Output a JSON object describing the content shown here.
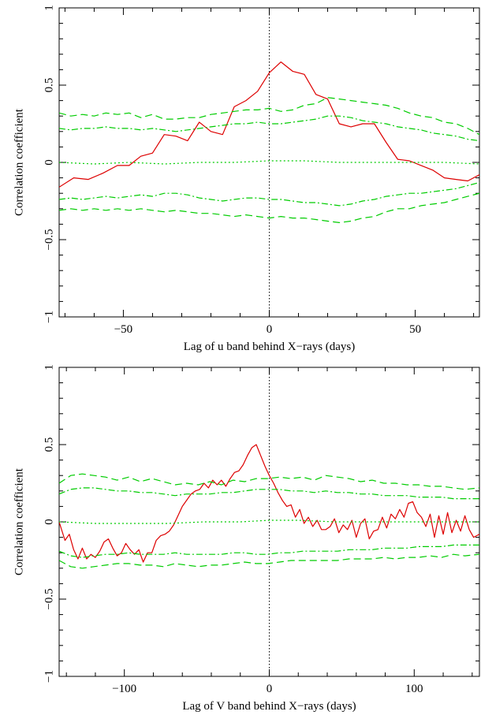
{
  "chart_data": [
    {
      "type": "line",
      "xlabel": "Lag of u band behind X−rays (days)",
      "ylabel": "Correlation coefficient",
      "xlim": [
        -72,
        72
      ],
      "ylim": [
        -1,
        1
      ],
      "xticks": [
        -50,
        0,
        50
      ],
      "xtick_labels": [
        "−50",
        "0",
        "50"
      ],
      "yticks": [
        -1,
        -0.5,
        0,
        0.5,
        1
      ],
      "ytick_labels": [
        "−1",
        "−0.5",
        "0",
        "0.5",
        "1"
      ],
      "grid": false,
      "zero_lag_line": true,
      "series": [
        {
          "style": "solid",
          "color": "#dd0000",
          "x": [
            -72,
            -67,
            -62,
            -57,
            -52,
            -48,
            -44,
            -40,
            -36,
            -32,
            -28,
            -24,
            -20,
            -16,
            -12,
            -8,
            -4,
            0,
            4,
            8,
            12,
            16,
            20,
            24,
            28,
            32,
            36,
            40,
            44,
            48,
            52,
            56,
            60,
            64,
            68,
            72
          ],
          "y": [
            -0.16,
            -0.1,
            -0.11,
            -0.07,
            -0.02,
            -0.02,
            0.04,
            0.06,
            0.18,
            0.17,
            0.14,
            0.26,
            0.2,
            0.18,
            0.36,
            0.4,
            0.46,
            0.58,
            0.65,
            0.59,
            0.57,
            0.44,
            0.41,
            0.25,
            0.23,
            0.25,
            0.25,
            0.13,
            0.02,
            0.01,
            -0.02,
            -0.05,
            -0.1,
            -0.11,
            -0.12,
            -0.08
          ]
        },
        {
          "style": "dashed",
          "color": "#00cc00",
          "x": [
            -72,
            -68,
            -64,
            -60,
            -56,
            -52,
            -48,
            -44,
            -40,
            -36,
            -32,
            -28,
            -24,
            -20,
            -16,
            -12,
            -8,
            -4,
            0,
            4,
            8,
            12,
            16,
            20,
            24,
            28,
            32,
            36,
            40,
            44,
            48,
            52,
            56,
            60,
            64,
            68,
            72
          ],
          "y": [
            0.32,
            0.3,
            0.31,
            0.3,
            0.32,
            0.31,
            0.32,
            0.29,
            0.31,
            0.28,
            0.28,
            0.29,
            0.29,
            0.31,
            0.32,
            0.33,
            0.34,
            0.34,
            0.35,
            0.33,
            0.34,
            0.37,
            0.38,
            0.42,
            0.41,
            0.4,
            0.39,
            0.38,
            0.37,
            0.35,
            0.32,
            0.3,
            0.29,
            0.26,
            0.25,
            0.22,
            0.18
          ]
        },
        {
          "style": "dashdot",
          "color": "#00cc00",
          "x": [
            -72,
            -68,
            -64,
            -60,
            -56,
            -52,
            -48,
            -44,
            -40,
            -36,
            -32,
            -28,
            -24,
            -20,
            -16,
            -12,
            -8,
            -4,
            0,
            4,
            8,
            12,
            16,
            20,
            24,
            28,
            32,
            36,
            40,
            44,
            48,
            52,
            56,
            60,
            64,
            68,
            72
          ],
          "y": [
            0.22,
            0.21,
            0.22,
            0.22,
            0.23,
            0.22,
            0.22,
            0.21,
            0.22,
            0.21,
            0.2,
            0.21,
            0.22,
            0.23,
            0.24,
            0.25,
            0.25,
            0.26,
            0.25,
            0.25,
            0.26,
            0.27,
            0.28,
            0.3,
            0.3,
            0.29,
            0.27,
            0.26,
            0.25,
            0.23,
            0.22,
            0.21,
            0.19,
            0.18,
            0.17,
            0.15,
            0.14
          ]
        },
        {
          "style": "dotted",
          "color": "#00cc00",
          "x": [
            -72,
            -60,
            -48,
            -36,
            -24,
            -12,
            0,
            12,
            24,
            36,
            48,
            60,
            72
          ],
          "y": [
            0.0,
            -0.01,
            0.0,
            -0.01,
            0.0,
            0.0,
            0.01,
            0.01,
            0.0,
            0.0,
            0.0,
            0.0,
            -0.01
          ]
        },
        {
          "style": "dashdot",
          "color": "#00cc00",
          "x": [
            -72,
            -68,
            -64,
            -60,
            -56,
            -52,
            -48,
            -44,
            -40,
            -36,
            -32,
            -28,
            -24,
            -20,
            -16,
            -12,
            -8,
            -4,
            0,
            4,
            8,
            12,
            16,
            20,
            24,
            28,
            32,
            36,
            40,
            44,
            48,
            52,
            56,
            60,
            64,
            68,
            72
          ],
          "y": [
            -0.24,
            -0.23,
            -0.24,
            -0.23,
            -0.22,
            -0.23,
            -0.22,
            -0.21,
            -0.22,
            -0.2,
            -0.2,
            -0.21,
            -0.23,
            -0.24,
            -0.25,
            -0.24,
            -0.23,
            -0.23,
            -0.24,
            -0.24,
            -0.25,
            -0.26,
            -0.26,
            -0.27,
            -0.28,
            -0.27,
            -0.25,
            -0.24,
            -0.22,
            -0.21,
            -0.2,
            -0.2,
            -0.19,
            -0.18,
            -0.17,
            -0.15,
            -0.13
          ]
        },
        {
          "style": "dashed",
          "color": "#00cc00",
          "x": [
            -72,
            -68,
            -64,
            -60,
            -56,
            -52,
            -48,
            -44,
            -40,
            -36,
            -32,
            -28,
            -24,
            -20,
            -16,
            -12,
            -8,
            -4,
            0,
            4,
            8,
            12,
            16,
            20,
            24,
            28,
            32,
            36,
            40,
            44,
            48,
            52,
            56,
            60,
            64,
            68,
            72
          ],
          "y": [
            -0.31,
            -0.3,
            -0.31,
            -0.3,
            -0.31,
            -0.3,
            -0.31,
            -0.3,
            -0.31,
            -0.32,
            -0.31,
            -0.32,
            -0.33,
            -0.33,
            -0.34,
            -0.35,
            -0.34,
            -0.35,
            -0.36,
            -0.35,
            -0.36,
            -0.36,
            -0.37,
            -0.38,
            -0.39,
            -0.38,
            -0.36,
            -0.35,
            -0.32,
            -0.3,
            -0.3,
            -0.28,
            -0.27,
            -0.26,
            -0.24,
            -0.22,
            -0.2
          ]
        }
      ]
    },
    {
      "type": "line",
      "xlabel": "Lag of V band behind X−rays (days)",
      "ylabel": "Correlation coefficient",
      "xlim": [
        -145,
        145
      ],
      "ylim": [
        -1,
        1
      ],
      "xticks": [
        -100,
        0,
        100
      ],
      "xtick_labels": [
        "−100",
        "0",
        "100"
      ],
      "yticks": [
        -1,
        -0.5,
        0,
        0.5,
        1
      ],
      "ytick_labels": [
        "−1",
        "−0.5",
        "0",
        "0.5",
        "1"
      ],
      "grid": false,
      "zero_lag_line": true,
      "series": [
        {
          "style": "solid",
          "color": "#dd0000",
          "x": [
            -145,
            -141,
            -138,
            -135,
            -132,
            -129,
            -126,
            -123,
            -120,
            -117,
            -114,
            -111,
            -108,
            -105,
            -102,
            -99,
            -96,
            -93,
            -90,
            -87,
            -84,
            -81,
            -78,
            -75,
            -72,
            -69,
            -66,
            -63,
            -60,
            -57,
            -54,
            -51,
            -48,
            -45,
            -42,
            -39,
            -36,
            -33,
            -30,
            -27,
            -24,
            -21,
            -18,
            -15,
            -12,
            -9,
            -6,
            -3,
            0,
            3,
            6,
            9,
            12,
            15,
            18,
            21,
            24,
            27,
            30,
            33,
            36,
            39,
            42,
            45,
            48,
            51,
            54,
            57,
            60,
            63,
            66,
            69,
            72,
            75,
            78,
            81,
            84,
            87,
            90,
            93,
            96,
            99,
            102,
            105,
            108,
            111,
            114,
            117,
            120,
            123,
            126,
            129,
            132,
            135,
            138,
            141,
            145
          ],
          "y": [
            0.0,
            -0.12,
            -0.08,
            -0.18,
            -0.24,
            -0.17,
            -0.24,
            -0.21,
            -0.23,
            -0.19,
            -0.13,
            -0.11,
            -0.17,
            -0.22,
            -0.2,
            -0.14,
            -0.18,
            -0.21,
            -0.18,
            -0.26,
            -0.2,
            -0.2,
            -0.12,
            -0.09,
            -0.08,
            -0.06,
            -0.02,
            0.04,
            0.1,
            0.14,
            0.18,
            0.2,
            0.21,
            0.25,
            0.22,
            0.27,
            0.24,
            0.27,
            0.23,
            0.28,
            0.32,
            0.33,
            0.37,
            0.43,
            0.48,
            0.5,
            0.43,
            0.36,
            0.3,
            0.25,
            0.19,
            0.14,
            0.1,
            0.11,
            0.03,
            0.08,
            -0.01,
            0.03,
            -0.03,
            0.01,
            -0.05,
            -0.05,
            -0.03,
            0.02,
            -0.07,
            -0.02,
            -0.05,
            0.01,
            -0.1,
            -0.01,
            0.02,
            -0.11,
            -0.06,
            -0.05,
            0.03,
            -0.04,
            0.05,
            0.02,
            0.08,
            0.03,
            0.12,
            0.13,
            0.06,
            0.03,
            -0.03,
            0.05,
            -0.1,
            0.04,
            -0.08,
            0.06,
            -0.07,
            0.01,
            -0.06,
            0.04,
            -0.05,
            -0.1,
            -0.08
          ]
        },
        {
          "style": "dashed",
          "color": "#00cc00",
          "x": [
            -145,
            -137,
            -129,
            -121,
            -113,
            -105,
            -97,
            -89,
            -81,
            -73,
            -65,
            -57,
            -49,
            -41,
            -33,
            -25,
            -17,
            -9,
            -1,
            7,
            15,
            23,
            31,
            39,
            47,
            55,
            63,
            71,
            79,
            87,
            95,
            103,
            111,
            119,
            127,
            135,
            145
          ],
          "y": [
            0.25,
            0.3,
            0.31,
            0.3,
            0.29,
            0.27,
            0.29,
            0.26,
            0.28,
            0.26,
            0.24,
            0.25,
            0.24,
            0.26,
            0.24,
            0.27,
            0.26,
            0.28,
            0.28,
            0.29,
            0.28,
            0.29,
            0.27,
            0.3,
            0.29,
            0.28,
            0.26,
            0.27,
            0.25,
            0.25,
            0.24,
            0.24,
            0.23,
            0.23,
            0.22,
            0.21,
            0.22
          ]
        },
        {
          "style": "dashdot",
          "color": "#00cc00",
          "x": [
            -145,
            -137,
            -129,
            -121,
            -113,
            -105,
            -97,
            -89,
            -81,
            -73,
            -65,
            -57,
            -49,
            -41,
            -33,
            -25,
            -17,
            -9,
            -1,
            7,
            15,
            23,
            31,
            39,
            47,
            55,
            63,
            71,
            79,
            87,
            95,
            103,
            111,
            119,
            127,
            135,
            145
          ],
          "y": [
            0.18,
            0.21,
            0.22,
            0.22,
            0.21,
            0.2,
            0.2,
            0.19,
            0.19,
            0.18,
            0.17,
            0.18,
            0.18,
            0.18,
            0.19,
            0.19,
            0.2,
            0.21,
            0.21,
            0.21,
            0.2,
            0.2,
            0.19,
            0.2,
            0.19,
            0.19,
            0.18,
            0.18,
            0.17,
            0.17,
            0.17,
            0.16,
            0.16,
            0.16,
            0.15,
            0.15,
            0.15
          ]
        },
        {
          "style": "dotted",
          "color": "#00cc00",
          "x": [
            -145,
            -120,
            -95,
            -70,
            -45,
            -20,
            0,
            20,
            45,
            70,
            95,
            120,
            145
          ],
          "y": [
            0.0,
            -0.01,
            -0.01,
            -0.01,
            0.0,
            0.0,
            0.01,
            0.01,
            0.0,
            0.0,
            0.0,
            0.0,
            0.0
          ]
        },
        {
          "style": "dashdot",
          "color": "#00cc00",
          "x": [
            -145,
            -137,
            -129,
            -121,
            -113,
            -105,
            -97,
            -89,
            -81,
            -73,
            -65,
            -57,
            -49,
            -41,
            -33,
            -25,
            -17,
            -9,
            -1,
            7,
            15,
            23,
            31,
            39,
            47,
            55,
            63,
            71,
            79,
            87,
            95,
            103,
            111,
            119,
            127,
            135,
            145
          ],
          "y": [
            -0.19,
            -0.22,
            -0.23,
            -0.22,
            -0.21,
            -0.21,
            -0.2,
            -0.21,
            -0.21,
            -0.21,
            -0.2,
            -0.21,
            -0.21,
            -0.21,
            -0.21,
            -0.2,
            -0.2,
            -0.21,
            -0.21,
            -0.2,
            -0.2,
            -0.19,
            -0.19,
            -0.19,
            -0.19,
            -0.18,
            -0.18,
            -0.18,
            -0.17,
            -0.17,
            -0.17,
            -0.16,
            -0.16,
            -0.16,
            -0.15,
            -0.15,
            -0.15
          ]
        },
        {
          "style": "dashed",
          "color": "#00cc00",
          "x": [
            -145,
            -137,
            -129,
            -121,
            -113,
            -105,
            -97,
            -89,
            -81,
            -73,
            -65,
            -57,
            -49,
            -41,
            -33,
            -25,
            -17,
            -9,
            -1,
            7,
            15,
            23,
            31,
            39,
            47,
            55,
            63,
            71,
            79,
            87,
            95,
            103,
            111,
            119,
            127,
            135,
            145
          ],
          "y": [
            -0.25,
            -0.29,
            -0.3,
            -0.29,
            -0.28,
            -0.27,
            -0.27,
            -0.28,
            -0.28,
            -0.29,
            -0.27,
            -0.28,
            -0.29,
            -0.28,
            -0.28,
            -0.27,
            -0.26,
            -0.27,
            -0.27,
            -0.26,
            -0.25,
            -0.25,
            -0.25,
            -0.25,
            -0.25,
            -0.24,
            -0.24,
            -0.24,
            -0.23,
            -0.24,
            -0.23,
            -0.23,
            -0.22,
            -0.23,
            -0.21,
            -0.22,
            -0.21
          ]
        }
      ]
    }
  ]
}
